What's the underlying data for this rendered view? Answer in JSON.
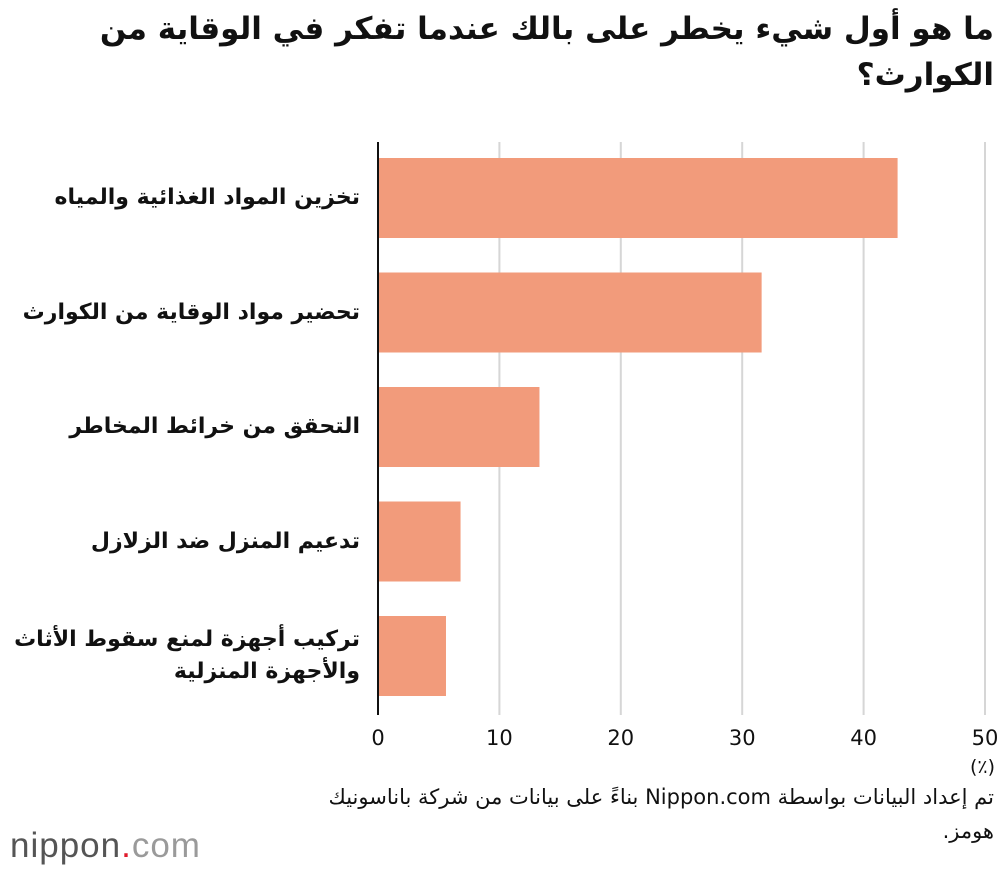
{
  "chart_data": {
    "type": "bar",
    "orientation": "horizontal",
    "title": "ما هو أول شيء يخطر على بالك عندما تفكر في الوقاية من الكوارث؟",
    "categories": [
      "تخزين المواد الغذائية والمياه",
      "تحضير مواد الوقاية من الكوارث",
      "التحقق من خرائط المخاطر",
      "تدعيم المنزل ضد الزلازل",
      "تركيب أجهزة لمنع سقوط الأثاث والأجهزة المنزلية"
    ],
    "values": [
      42.8,
      31.6,
      13.3,
      6.8,
      5.6
    ],
    "xlim": [
      0,
      50
    ],
    "ticks": [
      "0",
      "10",
      "20",
      "30",
      "40",
      "50"
    ],
    "unit_label": "(٪)",
    "grid": true,
    "bar_color": "#f29b7b",
    "grid_color": "#d6d6d6",
    "axis_color": "#111111"
  },
  "source_note": "تم إعداد البيانات بواسطة Nippon.com بناءً على بيانات من شركة باناسونيك هومز.",
  "logo": {
    "name": "nippon",
    "dot": ".",
    "suffix": "com"
  }
}
